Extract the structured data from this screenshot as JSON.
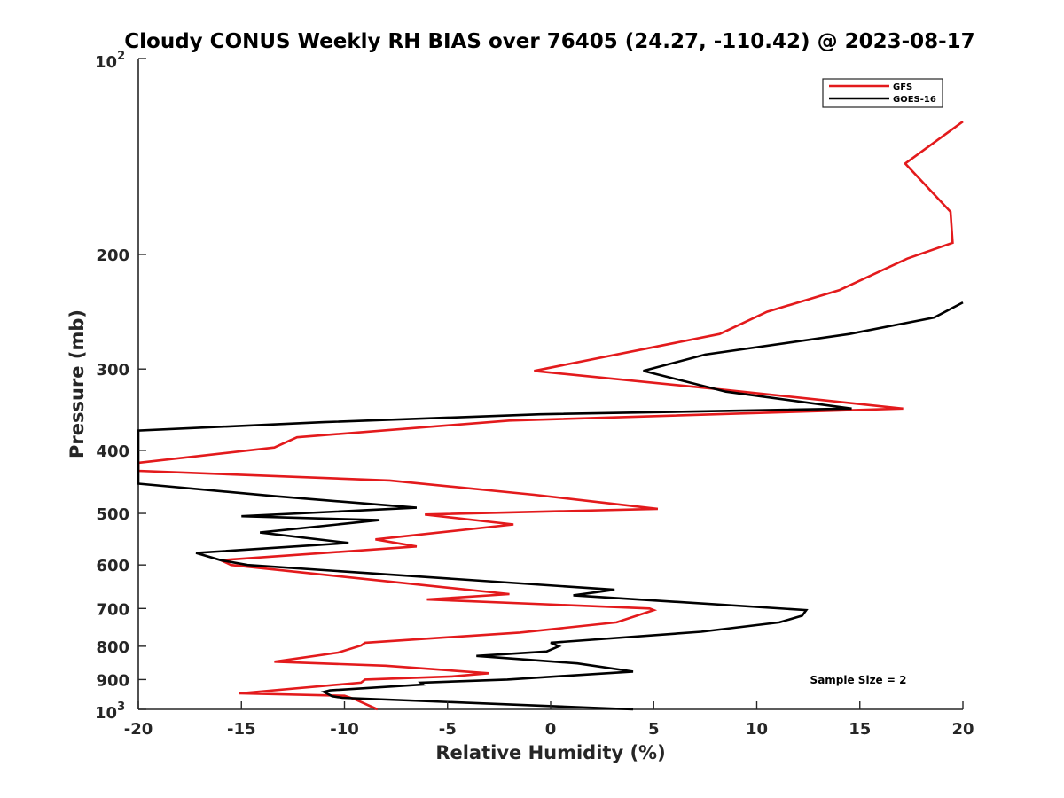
{
  "chart_data": {
    "type": "line",
    "title": "Cloudy CONUS Weekly RH BIAS over 76405 (24.27, -110.42) @ 2023-08-17",
    "xlabel": "Relative Humidity (%)",
    "ylabel": "Pressure (mb)",
    "xlim": [
      -20,
      20
    ],
    "ylim": [
      100,
      1000
    ],
    "y_scale": "log",
    "y_reversed": true,
    "x_ticks": [
      -20,
      -15,
      -10,
      -5,
      0,
      5,
      10,
      15,
      20
    ],
    "x_tick_labels": [
      "-20",
      "-15",
      "-10",
      "-5",
      "0",
      "5",
      "10",
      "15",
      "20"
    ],
    "y_ticks": [
      200,
      300,
      400,
      500,
      600,
      700,
      800,
      900
    ],
    "y_tick_labels": [
      "200",
      "300",
      "400",
      "500",
      "600",
      "700",
      "800",
      "900"
    ],
    "y_limit_labels": {
      "top": {
        "value": 100,
        "base": "10",
        "exp": "2"
      },
      "bottom": {
        "value": 1000,
        "base": "10",
        "exp": "3"
      }
    },
    "legend_position": "top-right",
    "annotation": "Sample Size = 2",
    "series": [
      {
        "name": "GFS",
        "color": "#e31a1c",
        "points": [
          [
            20.0,
            125
          ],
          [
            17.2,
            145
          ],
          [
            19.4,
            172
          ],
          [
            19.5,
            192
          ],
          [
            17.3,
            203
          ],
          [
            14.0,
            227
          ],
          [
            10.5,
            245
          ],
          [
            8.2,
            265
          ],
          [
            -0.8,
            302
          ],
          [
            8.5,
            323
          ],
          [
            17.1,
            345
          ],
          [
            -2.0,
            360
          ],
          [
            -12.3,
            382
          ],
          [
            -13.4,
            396
          ],
          [
            -20.0,
            418
          ],
          [
            -20.0,
            430
          ],
          [
            -7.8,
            445
          ],
          [
            -0.8,
            468
          ],
          [
            5.2,
            492
          ],
          [
            -6.1,
            502
          ],
          [
            -1.8,
            520
          ],
          [
            -8.5,
            548
          ],
          [
            -6.5,
            562
          ],
          [
            -16.0,
            590
          ],
          [
            -15.5,
            600
          ],
          [
            -2.0,
            665
          ],
          [
            -6.0,
            678
          ],
          [
            4.8,
            700
          ],
          [
            5.0,
            704
          ],
          [
            3.2,
            735
          ],
          [
            -1.5,
            762
          ],
          [
            -9.0,
            790
          ],
          [
            -9.2,
            798
          ],
          [
            -10.3,
            818
          ],
          [
            -13.4,
            845
          ],
          [
            -8.0,
            857
          ],
          [
            -3.0,
            880
          ],
          [
            -4.8,
            890
          ],
          [
            -9.0,
            900
          ],
          [
            -9.2,
            910
          ],
          [
            -15.1,
            945
          ],
          [
            -10.0,
            953
          ],
          [
            -9.5,
            965
          ],
          [
            -8.4,
            1000
          ]
        ]
      },
      {
        "name": "GOES-16",
        "color": "#000000",
        "points": [
          [
            20.0,
            237
          ],
          [
            18.6,
            250
          ],
          [
            14.5,
            265
          ],
          [
            7.5,
            285
          ],
          [
            4.5,
            302
          ],
          [
            8.5,
            325
          ],
          [
            14.6,
            345
          ],
          [
            -0.5,
            352
          ],
          [
            -11.0,
            362
          ],
          [
            -20.0,
            373
          ],
          [
            -20.0,
            450
          ],
          [
            -13.5,
            470
          ],
          [
            -6.5,
            490
          ],
          [
            -15.0,
            505
          ],
          [
            -8.3,
            512
          ],
          [
            -14.1,
            535
          ],
          [
            -9.8,
            555
          ],
          [
            -17.2,
            575
          ],
          [
            -16.0,
            590
          ],
          [
            -14.7,
            600
          ],
          [
            3.1,
            655
          ],
          [
            1.1,
            668
          ],
          [
            12.4,
            704
          ],
          [
            12.2,
            718
          ],
          [
            11.1,
            735
          ],
          [
            7.3,
            760
          ],
          [
            0.0,
            790
          ],
          [
            0.4,
            800
          ],
          [
            -0.2,
            815
          ],
          [
            -3.6,
            828
          ],
          [
            1.3,
            850
          ],
          [
            4.0,
            875
          ],
          [
            -2.1,
            900
          ],
          [
            -6.3,
            910
          ],
          [
            -6.2,
            916
          ],
          [
            -10.7,
            935
          ],
          [
            -11.0,
            940
          ],
          [
            -10.6,
            955
          ],
          [
            -10.1,
            960
          ],
          [
            4.0,
            1000
          ]
        ]
      }
    ]
  }
}
